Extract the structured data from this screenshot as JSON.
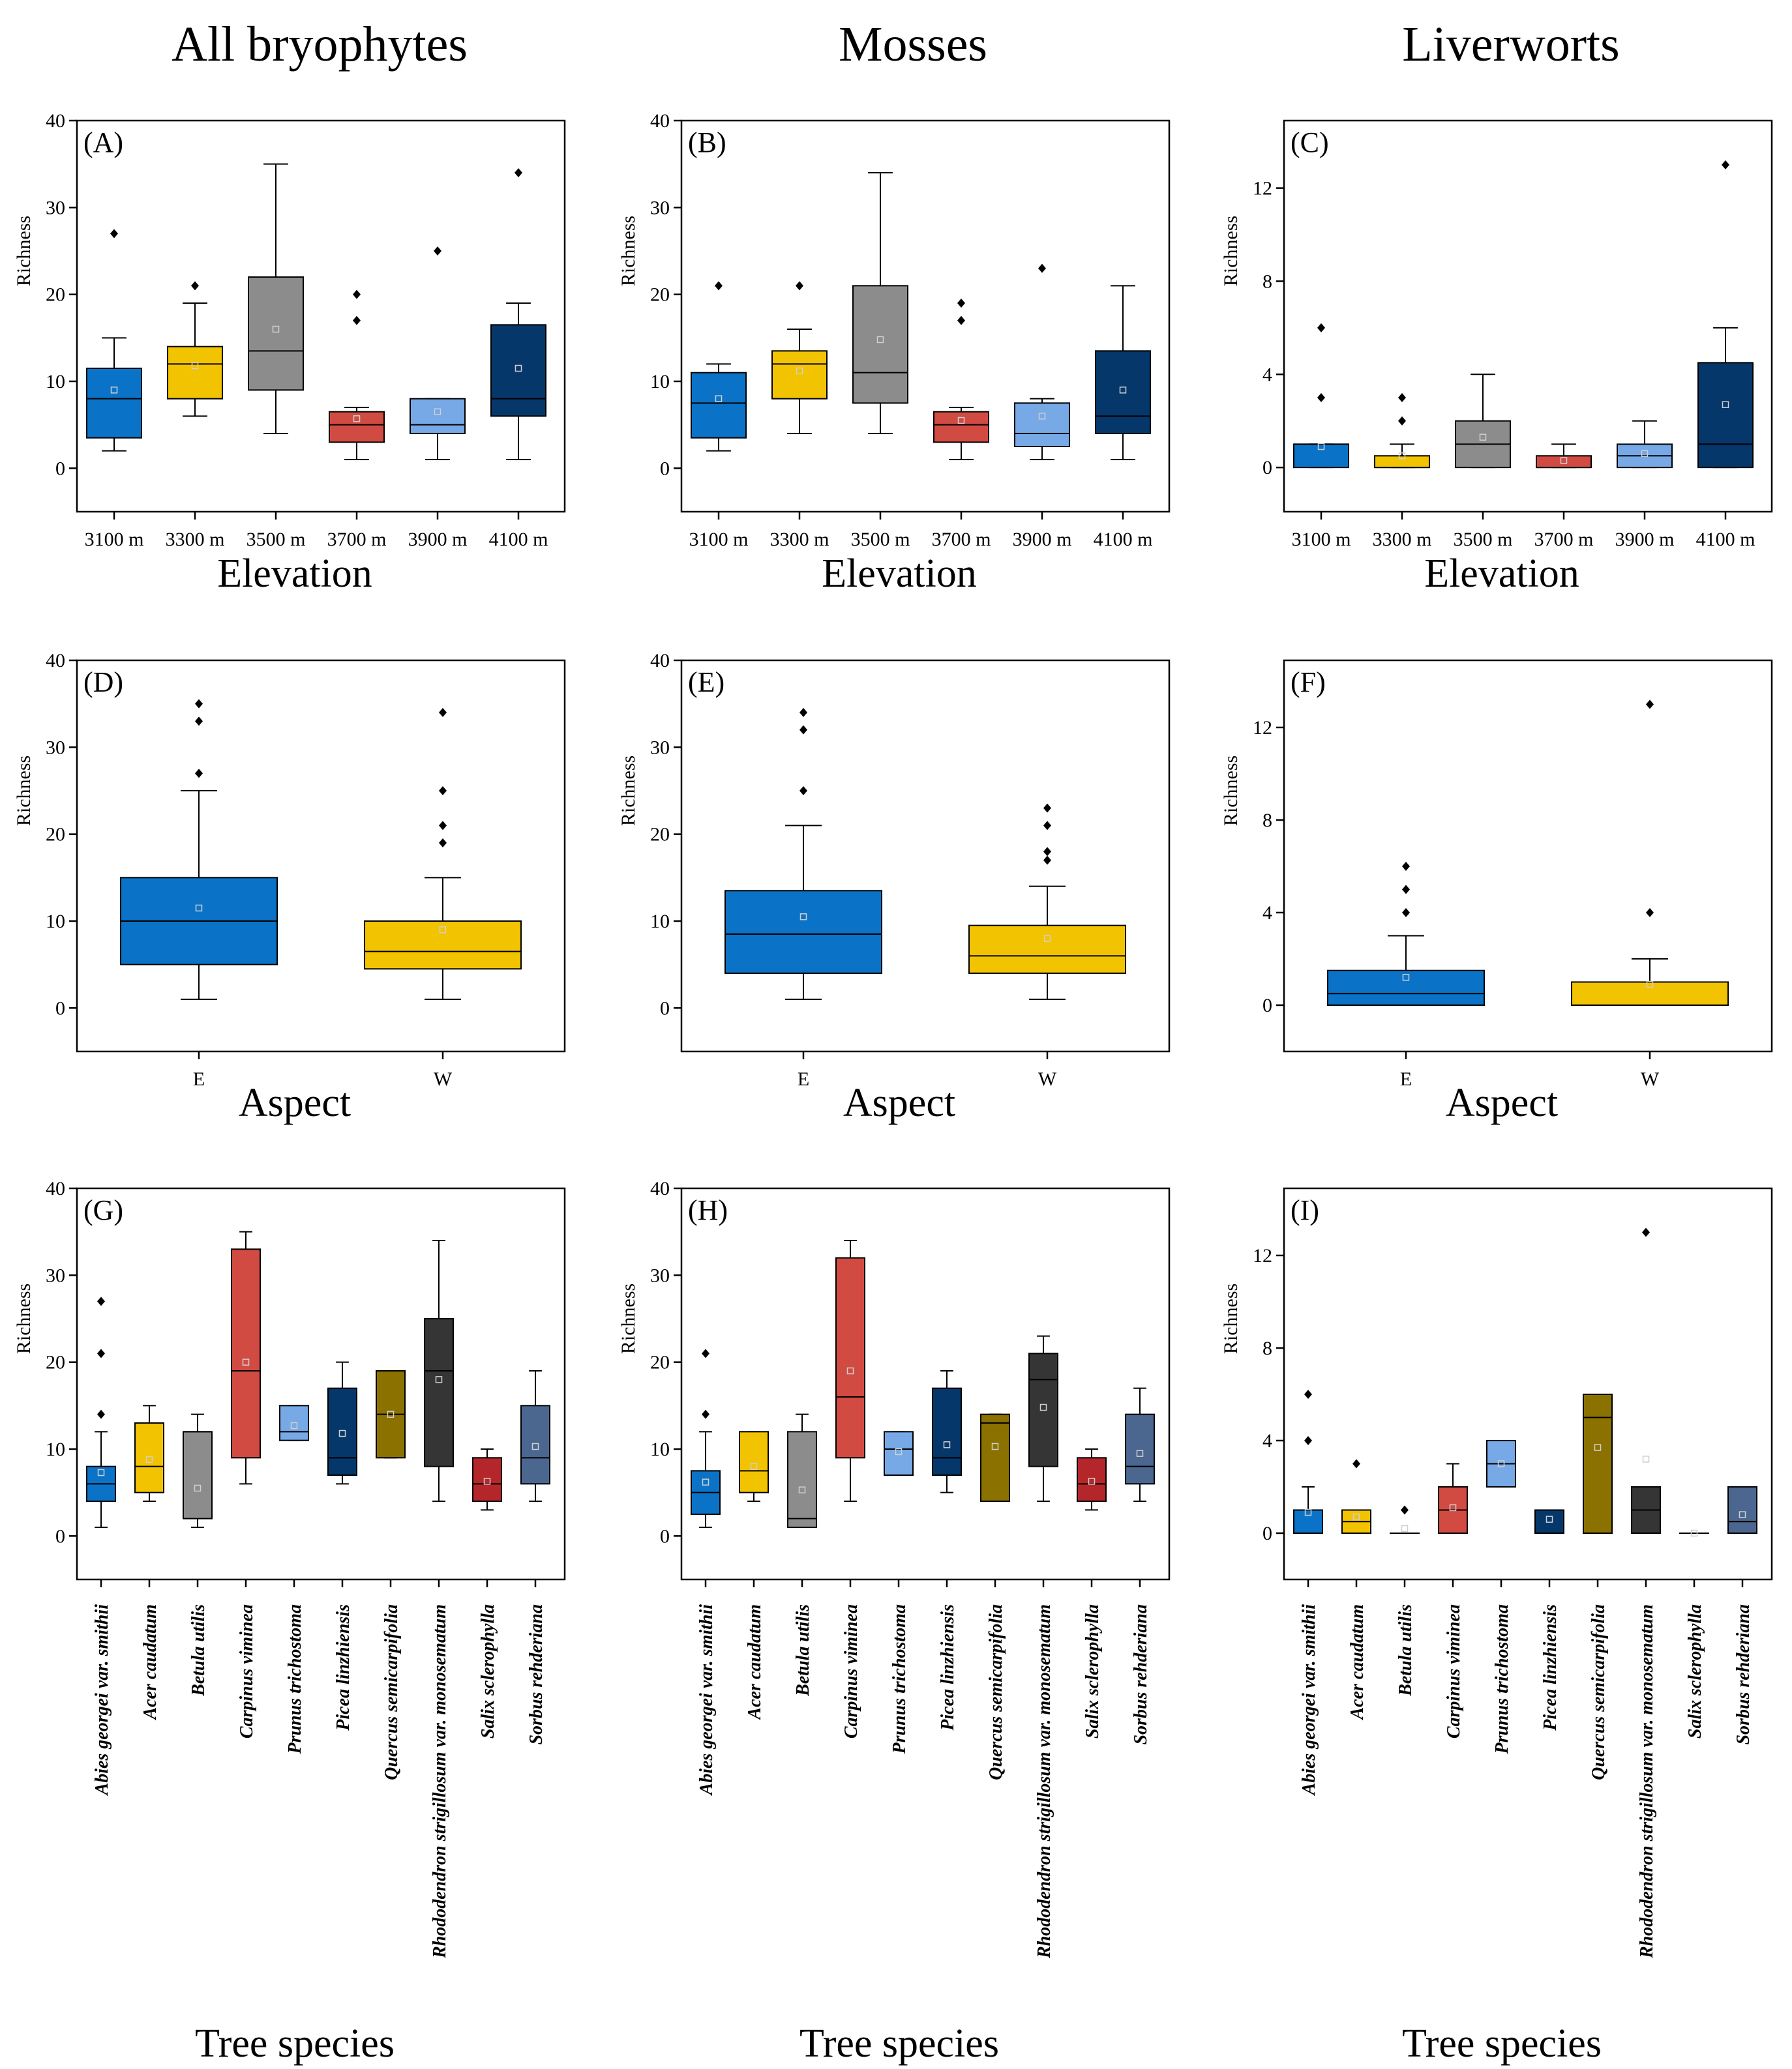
{
  "column_titles": [
    "All bryophytes",
    "Mosses",
    "Liverworts"
  ],
  "y_axis_label": "Richness",
  "row_x_titles": [
    "Elevation",
    "Aspect",
    "Tree species"
  ],
  "colors": {
    "blue": "#0b73c7",
    "yellow": "#f2c300",
    "gray": "#8c8c8c",
    "red": "#d24b42",
    "lightblue": "#76a9e6",
    "navy": "#06376a",
    "olive": "#8b7200",
    "dark": "#353535",
    "darkred": "#b5262b",
    "slate": "#4b6790"
  },
  "chart_data": [
    {
      "label": "(A)",
      "type": "boxplot",
      "xlabel": "Elevation",
      "ylabel": "Richness",
      "ylim": [
        -5,
        40
      ],
      "yticks": [
        0,
        10,
        20,
        30,
        40
      ],
      "categories": [
        "3100 m",
        "3300 m",
        "3500 m",
        "3700 m",
        "3900 m",
        "4100 m"
      ],
      "colors": [
        "blue",
        "yellow",
        "gray",
        "red",
        "lightblue",
        "navy"
      ],
      "boxes": [
        {
          "q1": 3.5,
          "median": 8,
          "q3": 11.5,
          "whislo": 2,
          "whishi": 15,
          "mean": 9,
          "outliers": [
            27
          ]
        },
        {
          "q1": 8,
          "median": 12,
          "q3": 14,
          "whislo": 6,
          "whishi": 19,
          "mean": 11.8,
          "outliers": [
            21
          ]
        },
        {
          "q1": 9,
          "median": 13.5,
          "q3": 22,
          "whislo": 4,
          "whishi": 35,
          "mean": 16,
          "outliers": []
        },
        {
          "q1": 3,
          "median": 5,
          "q3": 6.5,
          "whislo": 1,
          "whishi": 7,
          "mean": 5.7,
          "outliers": [
            17,
            20
          ]
        },
        {
          "q1": 4,
          "median": 5,
          "q3": 8,
          "whislo": 1,
          "whishi": 8,
          "mean": 6.5,
          "outliers": [
            25
          ]
        },
        {
          "q1": 6,
          "median": 8,
          "q3": 16.5,
          "whislo": 1,
          "whishi": 19,
          "mean": 11.5,
          "outliers": [
            34
          ]
        }
      ]
    },
    {
      "label": "(B)",
      "type": "boxplot",
      "xlabel": "Elevation",
      "ylabel": "Richness",
      "ylim": [
        -5,
        40
      ],
      "yticks": [
        0,
        10,
        20,
        30,
        40
      ],
      "categories": [
        "3100 m",
        "3300 m",
        "3500 m",
        "3700 m",
        "3900 m",
        "4100 m"
      ],
      "colors": [
        "blue",
        "yellow",
        "gray",
        "red",
        "lightblue",
        "navy"
      ],
      "boxes": [
        {
          "q1": 3.5,
          "median": 7.5,
          "q3": 11,
          "whislo": 2,
          "whishi": 12,
          "mean": 8,
          "outliers": [
            21
          ]
        },
        {
          "q1": 8,
          "median": 12,
          "q3": 13.5,
          "whislo": 4,
          "whishi": 16,
          "mean": 11.2,
          "outliers": [
            21
          ]
        },
        {
          "q1": 7.5,
          "median": 11,
          "q3": 21,
          "whislo": 4,
          "whishi": 34,
          "mean": 14.8,
          "outliers": []
        },
        {
          "q1": 3,
          "median": 5,
          "q3": 6.5,
          "whislo": 1,
          "whishi": 7,
          "mean": 5.5,
          "outliers": [
            17,
            19
          ]
        },
        {
          "q1": 2.5,
          "median": 4,
          "q3": 7.5,
          "whislo": 1,
          "whishi": 8,
          "mean": 6,
          "outliers": [
            23
          ]
        },
        {
          "q1": 4,
          "median": 6,
          "q3": 13.5,
          "whislo": 1,
          "whishi": 21,
          "mean": 9,
          "outliers": []
        }
      ]
    },
    {
      "label": "(C)",
      "type": "boxplot",
      "xlabel": "Elevation",
      "ylabel": "Richness",
      "ylim": [
        -1.9,
        14.9
      ],
      "yticks": [
        0,
        4,
        8,
        12
      ],
      "categories": [
        "3100 m",
        "3300 m",
        "3500 m",
        "3700 m",
        "3900 m",
        "4100 m"
      ],
      "colors": [
        "blue",
        "yellow",
        "gray",
        "red",
        "lightblue",
        "navy"
      ],
      "boxes": [
        {
          "q1": 0,
          "median": 1,
          "q3": 1,
          "whislo": 0,
          "whishi": 1,
          "mean": 0.9,
          "outliers": [
            3,
            6
          ]
        },
        {
          "q1": 0,
          "median": 0,
          "q3": 0.5,
          "whislo": 0,
          "whishi": 1,
          "mean": 0.5,
          "outliers": [
            2,
            3
          ]
        },
        {
          "q1": 0,
          "median": 1,
          "q3": 2,
          "whislo": 0,
          "whishi": 4,
          "mean": 1.3,
          "outliers": []
        },
        {
          "q1": 0,
          "median": 0,
          "q3": 0.5,
          "whislo": 0,
          "whishi": 1,
          "mean": 0.3,
          "outliers": []
        },
        {
          "q1": 0,
          "median": 0.5,
          "q3": 1,
          "whislo": 0,
          "whishi": 2,
          "mean": 0.6,
          "outliers": []
        },
        {
          "q1": 0,
          "median": 1,
          "q3": 4.5,
          "whislo": 0,
          "whishi": 6,
          "mean": 2.7,
          "outliers": [
            13
          ]
        }
      ]
    },
    {
      "label": "(D)",
      "type": "boxplot",
      "xlabel": "Aspect",
      "ylabel": "Richness",
      "ylim": [
        -5,
        40
      ],
      "yticks": [
        0,
        10,
        20,
        30,
        40
      ],
      "categories": [
        "E",
        "W"
      ],
      "colors": [
        "blue",
        "yellow"
      ],
      "boxes": [
        {
          "q1": 5,
          "median": 10,
          "q3": 15,
          "whislo": 1,
          "whishi": 25,
          "mean": 11.5,
          "outliers": [
            27,
            33,
            35
          ]
        },
        {
          "q1": 4.5,
          "median": 6.5,
          "q3": 10,
          "whislo": 1,
          "whishi": 15,
          "mean": 9,
          "outliers": [
            19,
            21,
            25,
            34
          ]
        }
      ]
    },
    {
      "label": "(E)",
      "type": "boxplot",
      "xlabel": "Aspect",
      "ylabel": "Richness",
      "ylim": [
        -5,
        40
      ],
      "yticks": [
        0,
        10,
        20,
        30,
        40
      ],
      "categories": [
        "E",
        "W"
      ],
      "colors": [
        "blue",
        "yellow"
      ],
      "boxes": [
        {
          "q1": 4,
          "median": 8.5,
          "q3": 13.5,
          "whislo": 1,
          "whishi": 21,
          "mean": 10.5,
          "outliers": [
            25,
            32,
            34
          ]
        },
        {
          "q1": 4,
          "median": 6,
          "q3": 9.5,
          "whislo": 1,
          "whishi": 14,
          "mean": 8,
          "outliers": [
            17,
            18,
            21,
            23
          ]
        }
      ]
    },
    {
      "label": "(F)",
      "type": "boxplot",
      "xlabel": "Aspect",
      "ylabel": "Richness",
      "ylim": [
        -2,
        14.9
      ],
      "yticks": [
        0,
        4,
        8,
        12
      ],
      "categories": [
        "E",
        "W"
      ],
      "colors": [
        "blue",
        "yellow"
      ],
      "boxes": [
        {
          "q1": 0,
          "median": 0.5,
          "q3": 1.5,
          "whislo": 0,
          "whishi": 3,
          "mean": 1.2,
          "outliers": [
            4,
            5,
            6
          ]
        },
        {
          "q1": 0,
          "median": 0,
          "q3": 1,
          "whislo": 0,
          "whishi": 2,
          "mean": 0.9,
          "outliers": [
            4,
            13
          ]
        }
      ]
    },
    {
      "label": "(G)",
      "type": "boxplot",
      "xlabel": "Tree species",
      "ylabel": "Richness",
      "ylim": [
        -5,
        40
      ],
      "yticks": [
        0,
        10,
        20,
        30,
        40
      ],
      "categories": [
        "Abies georgei var. smithii",
        "Acer caudatum",
        "Betula utilis",
        "Carpinus viminea",
        "Prunus trichostoma",
        "Picea linzhiensis",
        "Quercus semicarpifolia",
        "Rhododendron strigillosum var. monosematum",
        "Salix sclerophylla",
        "Sorbus rehderiana"
      ],
      "colors": [
        "blue",
        "yellow",
        "gray",
        "red",
        "lightblue",
        "navy",
        "olive",
        "dark",
        "darkred",
        "slate"
      ],
      "boxes": [
        {
          "q1": 4,
          "median": 6,
          "q3": 8,
          "whislo": 1,
          "whishi": 12,
          "mean": 7.3,
          "outliers": [
            14,
            21,
            27
          ]
        },
        {
          "q1": 5,
          "median": 8,
          "q3": 13,
          "whislo": 4,
          "whishi": 15,
          "mean": 8.8,
          "outliers": []
        },
        {
          "q1": 2,
          "median": 12,
          "q3": 12,
          "whislo": 1,
          "whishi": 14,
          "mean": 5.5,
          "outliers": []
        },
        {
          "q1": 9,
          "median": 19,
          "q3": 33,
          "whislo": 6,
          "whishi": 35,
          "mean": 20,
          "outliers": []
        },
        {
          "q1": 11,
          "median": 12,
          "q3": 15,
          "whislo": 11,
          "whishi": 15,
          "mean": 12.7,
          "outliers": []
        },
        {
          "q1": 7,
          "median": 9,
          "q3": 17,
          "whislo": 6,
          "whishi": 20,
          "mean": 11.8,
          "outliers": []
        },
        {
          "q1": 9,
          "median": 14,
          "q3": 19,
          "whislo": 9,
          "whishi": 19,
          "mean": 14,
          "outliers": []
        },
        {
          "q1": 8,
          "median": 19,
          "q3": 25,
          "whislo": 4,
          "whishi": 34,
          "mean": 18,
          "outliers": []
        },
        {
          "q1": 4,
          "median": 6,
          "q3": 9,
          "whislo": 3,
          "whishi": 10,
          "mean": 6.3,
          "outliers": []
        },
        {
          "q1": 6,
          "median": 9,
          "q3": 15,
          "whislo": 4,
          "whishi": 19,
          "mean": 10.3,
          "outliers": []
        }
      ]
    },
    {
      "label": "(H)",
      "type": "boxplot",
      "xlabel": "Tree species",
      "ylabel": "Richness",
      "ylim": [
        -5,
        40
      ],
      "yticks": [
        0,
        10,
        20,
        30,
        40
      ],
      "categories": [
        "Abies georgei var. smithii",
        "Acer caudatum",
        "Betula utilis",
        "Carpinus viminea",
        "Prunus trichostoma",
        "Picea linzhiensis",
        "Quercus semicarpifolia",
        "Rhododendron strigillosum var. monosematum",
        "Salix sclerophylla",
        "Sorbus rehderiana"
      ],
      "colors": [
        "blue",
        "yellow",
        "gray",
        "red",
        "lightblue",
        "navy",
        "olive",
        "dark",
        "darkred",
        "slate"
      ],
      "boxes": [
        {
          "q1": 2.5,
          "median": 5,
          "q3": 7.5,
          "whislo": 1,
          "whishi": 12,
          "mean": 6.2,
          "outliers": [
            14,
            21
          ]
        },
        {
          "q1": 5,
          "median": 7.5,
          "q3": 12,
          "whislo": 4,
          "whishi": 12,
          "mean": 8,
          "outliers": []
        },
        {
          "q1": 1,
          "median": 2,
          "q3": 12,
          "whislo": 1,
          "whishi": 14,
          "mean": 5.3,
          "outliers": []
        },
        {
          "q1": 9,
          "median": 16,
          "q3": 32,
          "whislo": 4,
          "whishi": 34,
          "mean": 19,
          "outliers": []
        },
        {
          "q1": 7,
          "median": 10,
          "q3": 12,
          "whislo": 7,
          "whishi": 12,
          "mean": 9.7,
          "outliers": []
        },
        {
          "q1": 7,
          "median": 9,
          "q3": 17,
          "whislo": 5,
          "whishi": 19,
          "mean": 10.5,
          "outliers": []
        },
        {
          "q1": 4,
          "median": 13,
          "q3": 14,
          "whislo": 4,
          "whishi": 14,
          "mean": 10.3,
          "outliers": []
        },
        {
          "q1": 8,
          "median": 18,
          "q3": 21,
          "whislo": 4,
          "whishi": 23,
          "mean": 14.8,
          "outliers": []
        },
        {
          "q1": 4,
          "median": 6,
          "q3": 9,
          "whislo": 3,
          "whishi": 10,
          "mean": 6.3,
          "outliers": []
        },
        {
          "q1": 6,
          "median": 8,
          "q3": 14,
          "whislo": 4,
          "whishi": 17,
          "mean": 9.5,
          "outliers": []
        }
      ]
    },
    {
      "label": "(I)",
      "type": "boxplot",
      "xlabel": "Tree species",
      "ylabel": "Richness",
      "ylim": [
        -2,
        14.9
      ],
      "yticks": [
        0,
        4,
        8,
        12
      ],
      "categories": [
        "Abies georgei var. smithii",
        "Acer caudatum",
        "Betula utilis",
        "Carpinus viminea",
        "Prunus trichostoma",
        "Picea linzhiensis",
        "Quercus semicarpifolia",
        "Rhododendron strigillosum var. monosematum",
        "Salix sclerophylla",
        "Sorbus rehderiana"
      ],
      "colors": [
        "blue",
        "yellow",
        "gray",
        "red",
        "lightblue",
        "navy",
        "olive",
        "dark",
        "darkred",
        "slate"
      ],
      "boxes": [
        {
          "q1": 0,
          "median": 1,
          "q3": 1,
          "whislo": 0,
          "whishi": 2,
          "mean": 0.9,
          "outliers": [
            4,
            6
          ]
        },
        {
          "q1": 0,
          "median": 0.5,
          "q3": 1,
          "whislo": 0,
          "whishi": 1,
          "mean": 0.7,
          "outliers": [
            3
          ]
        },
        {
          "q1": 0,
          "median": 0,
          "q3": 0,
          "whislo": 0,
          "whishi": 0,
          "mean": 0.2,
          "outliers": [
            1
          ]
        },
        {
          "q1": 0,
          "median": 1,
          "q3": 2,
          "whislo": 0,
          "whishi": 3,
          "mean": 1.1,
          "outliers": []
        },
        {
          "q1": 2,
          "median": 3,
          "q3": 4,
          "whislo": 2,
          "whishi": 4,
          "mean": 3,
          "outliers": []
        },
        {
          "q1": 0,
          "median": 1,
          "q3": 1,
          "whislo": 0,
          "whishi": 1,
          "mean": 0.6,
          "outliers": []
        },
        {
          "q1": 0,
          "median": 5,
          "q3": 6,
          "whislo": 0,
          "whishi": 6,
          "mean": 3.7,
          "outliers": []
        },
        {
          "q1": 0,
          "median": 1,
          "q3": 2,
          "whislo": 0,
          "whishi": 2,
          "mean": 3.2,
          "outliers": [
            13
          ]
        },
        {
          "q1": 0,
          "median": 0,
          "q3": 0,
          "whislo": 0,
          "whishi": 0,
          "mean": 0,
          "outliers": []
        },
        {
          "q1": 0,
          "median": 0.5,
          "q3": 2,
          "whislo": 0,
          "whishi": 2,
          "mean": 0.8,
          "outliers": []
        }
      ]
    }
  ]
}
